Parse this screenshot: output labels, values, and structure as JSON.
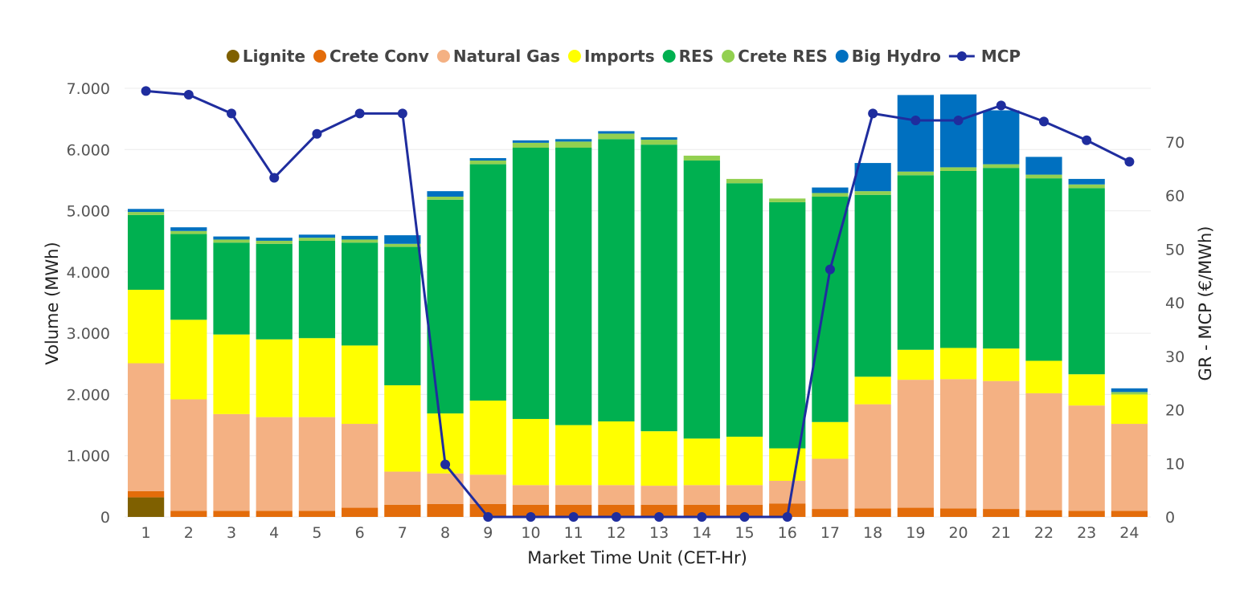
{
  "chart_data": {
    "type": "bar",
    "subtype": "stacked-bar-with-line",
    "xlabel": "Market Time Unit (CET-Hr)",
    "ylabel": "Volume (MWh)",
    "y2label": "GR - MCP (€/MWh)",
    "ylim": [
      0,
      7000
    ],
    "y2lim": [
      0,
      80
    ],
    "yticks": [
      "0",
      "1.000",
      "2.000",
      "3.000",
      "4.000",
      "5.000",
      "6.000",
      "7.000"
    ],
    "y2ticks": [
      "0",
      "10",
      "20",
      "30",
      "40",
      "50",
      "60",
      "70"
    ],
    "grid": "horizontal",
    "legend_position": "top",
    "categories": [
      "1",
      "2",
      "3",
      "4",
      "5",
      "6",
      "7",
      "8",
      "9",
      "10",
      "11",
      "12",
      "13",
      "14",
      "15",
      "16",
      "17",
      "18",
      "19",
      "20",
      "21",
      "22",
      "23",
      "24"
    ],
    "series": [
      {
        "name": "Lignite",
        "color": "#7F6000",
        "values": [
          320,
          0,
          0,
          0,
          0,
          0,
          0,
          0,
          0,
          0,
          0,
          0,
          0,
          0,
          0,
          0,
          0,
          0,
          0,
          0,
          0,
          0,
          0,
          0
        ]
      },
      {
        "name": "Crete Conv",
        "color": "#E36C0A",
        "values": [
          100,
          100,
          100,
          100,
          100,
          150,
          200,
          210,
          210,
          200,
          200,
          200,
          200,
          200,
          200,
          220,
          130,
          140,
          150,
          140,
          130,
          110,
          100,
          100
        ]
      },
      {
        "name": "Natural Gas",
        "color": "#F4B183",
        "values": [
          2090,
          1820,
          1580,
          1530,
          1530,
          1370,
          540,
          500,
          480,
          320,
          320,
          320,
          310,
          320,
          320,
          370,
          820,
          1700,
          2090,
          2110,
          2090,
          1910,
          1720,
          1420
        ]
      },
      {
        "name": "Imports",
        "color": "#FFFF00",
        "values": [
          1200,
          1300,
          1300,
          1270,
          1290,
          1280,
          1410,
          980,
          1210,
          1080,
          980,
          1040,
          890,
          760,
          790,
          530,
          600,
          450,
          490,
          510,
          530,
          530,
          510,
          480
        ]
      },
      {
        "name": "RES",
        "color": "#00B050",
        "values": [
          1220,
          1400,
          1500,
          1560,
          1590,
          1680,
          2260,
          3490,
          3860,
          4430,
          4530,
          4610,
          4680,
          4540,
          4140,
          4020,
          3680,
          2970,
          2850,
          2890,
          2950,
          2980,
          3040,
          0
        ]
      },
      {
        "name": "Crete RES",
        "color": "#92D050",
        "values": [
          50,
          50,
          50,
          50,
          50,
          50,
          50,
          50,
          60,
          80,
          100,
          90,
          80,
          80,
          70,
          60,
          60,
          60,
          60,
          60,
          60,
          60,
          60,
          40
        ]
      },
      {
        "name": "Big Hydro",
        "color": "#0070C0",
        "values": [
          50,
          60,
          50,
          50,
          50,
          60,
          140,
          90,
          40,
          40,
          40,
          40,
          40,
          0,
          0,
          0,
          90,
          460,
          1250,
          1190,
          880,
          290,
          90,
          60
        ]
      }
    ],
    "line_series": {
      "name": "MCP",
      "color": "#1F2D9E",
      "axis": "secondary",
      "values": [
        79.5,
        78.8,
        75.3,
        63.3,
        71.5,
        75.3,
        75.3,
        9.8,
        0,
        0,
        0,
        0,
        0,
        0,
        0,
        0,
        46.2,
        75.3,
        74,
        74,
        76.8,
        73.8,
        70.3,
        66.3
      ]
    }
  }
}
